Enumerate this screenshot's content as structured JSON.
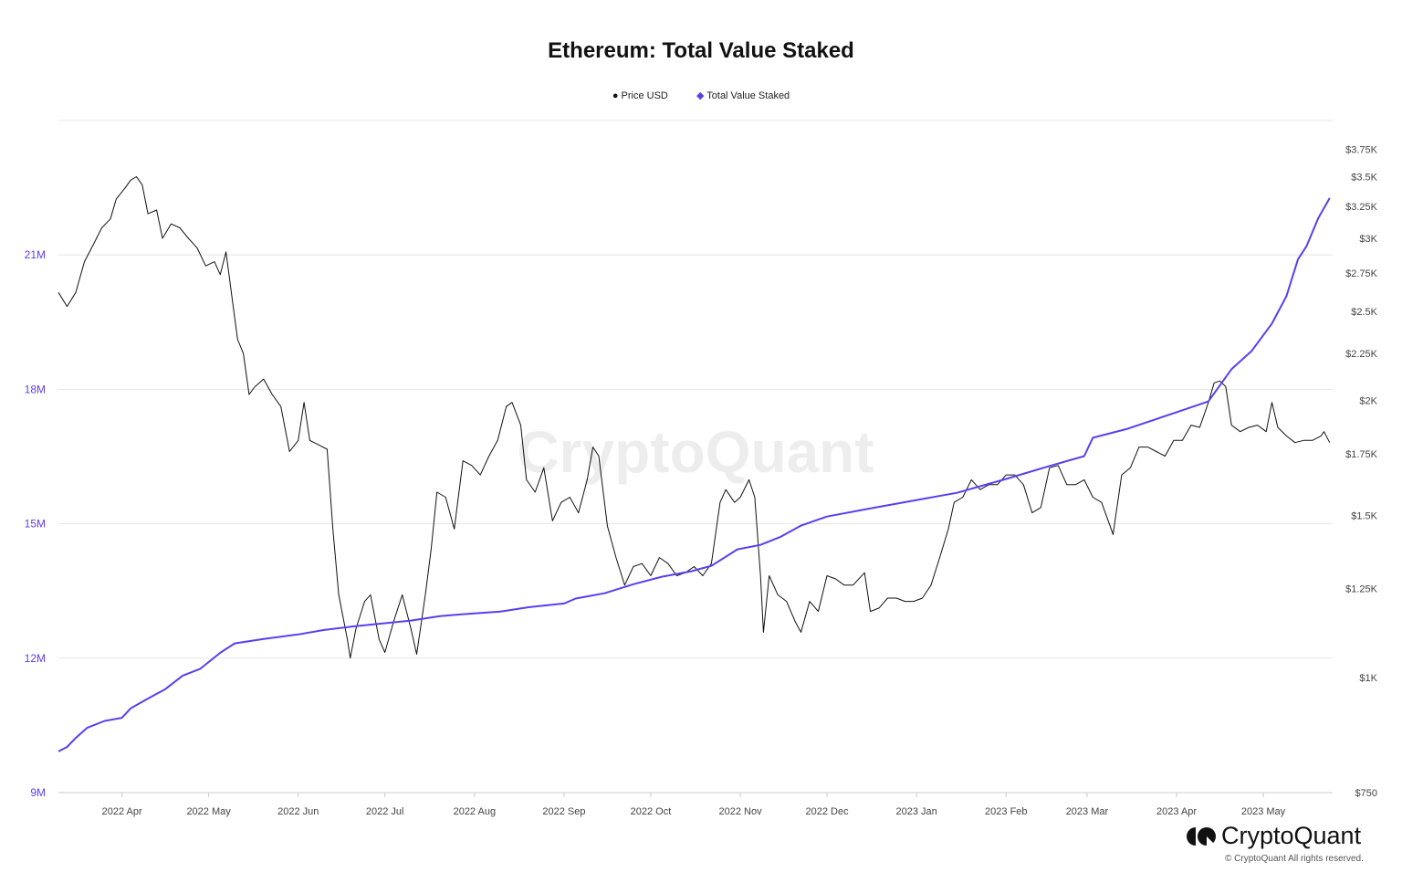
{
  "chart_data": {
    "type": "line",
    "title": "Ethereum: Total Value Staked",
    "legend_position": "top",
    "grid": true,
    "watermark": "CryptoQuant",
    "x_range": [
      "2022-03-10",
      "2023-05-25"
    ],
    "x_ticks": [
      {
        "date": "2022-04-01",
        "label": "2022 Apr"
      },
      {
        "date": "2022-05-01",
        "label": "2022 May"
      },
      {
        "date": "2022-06-01",
        "label": "2022 Jun"
      },
      {
        "date": "2022-07-01",
        "label": "2022 Jul"
      },
      {
        "date": "2022-08-01",
        "label": "2022 Aug"
      },
      {
        "date": "2022-09-01",
        "label": "2022 Sep"
      },
      {
        "date": "2022-10-01",
        "label": "2022 Oct"
      },
      {
        "date": "2022-11-01",
        "label": "2022 Nov"
      },
      {
        "date": "2022-12-01",
        "label": "2022 Dec"
      },
      {
        "date": "2023-01-01",
        "label": "2023 Jan"
      },
      {
        "date": "2023-02-01",
        "label": "2023 Feb"
      },
      {
        "date": "2023-03-01",
        "label": "2023 Mar"
      },
      {
        "date": "2023-04-01",
        "label": "2023 Apr"
      },
      {
        "date": "2023-05-01",
        "label": "2023 May"
      }
    ],
    "y_left": {
      "scale": "linear",
      "range": [
        9,
        24
      ],
      "ticks": [
        {
          "v": 9,
          "label": "9M"
        },
        {
          "v": 12,
          "label": "12M"
        },
        {
          "v": 15,
          "label": "15M"
        },
        {
          "v": 18,
          "label": "18M"
        },
        {
          "v": 21,
          "label": "21M"
        }
      ],
      "unit": "M"
    },
    "y_right": {
      "scale": "log",
      "range": [
        750,
        4028
      ],
      "ticks": [
        {
          "v": 750,
          "label": "$750"
        },
        {
          "v": 1000,
          "label": "$1K"
        },
        {
          "v": 1250,
          "label": "$1.25K"
        },
        {
          "v": 1500,
          "label": "$1.5K"
        },
        {
          "v": 1750,
          "label": "$1.75K"
        },
        {
          "v": 2000,
          "label": "$2K"
        },
        {
          "v": 2250,
          "label": "$2.25K"
        },
        {
          "v": 2500,
          "label": "$2.5K"
        },
        {
          "v": 2750,
          "label": "$2.75K"
        },
        {
          "v": 3000,
          "label": "$3K"
        },
        {
          "v": 3250,
          "label": "$3.25K"
        },
        {
          "v": 3500,
          "label": "$3.5K"
        },
        {
          "v": 3750,
          "label": "$3.75K"
        }
      ]
    },
    "series": [
      {
        "name": "Price USD",
        "axis": "right",
        "color": "#111111",
        "points": [
          [
            "2022-03-10",
            2620
          ],
          [
            "2022-03-13",
            2530
          ],
          [
            "2022-03-16",
            2620
          ],
          [
            "2022-03-19",
            2830
          ],
          [
            "2022-03-22",
            2950
          ],
          [
            "2022-03-25",
            3080
          ],
          [
            "2022-03-28",
            3150
          ],
          [
            "2022-03-30",
            3310
          ],
          [
            "2022-04-02",
            3400
          ],
          [
            "2022-04-04",
            3470
          ],
          [
            "2022-04-06",
            3500
          ],
          [
            "2022-04-08",
            3430
          ],
          [
            "2022-04-10",
            3190
          ],
          [
            "2022-04-13",
            3220
          ],
          [
            "2022-04-15",
            3000
          ],
          [
            "2022-04-18",
            3110
          ],
          [
            "2022-04-21",
            3080
          ],
          [
            "2022-04-24",
            3000
          ],
          [
            "2022-04-27",
            2930
          ],
          [
            "2022-04-30",
            2800
          ],
          [
            "2022-05-03",
            2830
          ],
          [
            "2022-05-05",
            2740
          ],
          [
            "2022-05-07",
            2900
          ],
          [
            "2022-05-09",
            2600
          ],
          [
            "2022-05-11",
            2330
          ],
          [
            "2022-05-13",
            2250
          ],
          [
            "2022-05-15",
            2030
          ],
          [
            "2022-05-17",
            2070
          ],
          [
            "2022-05-20",
            2110
          ],
          [
            "2022-05-23",
            2030
          ],
          [
            "2022-05-26",
            1970
          ],
          [
            "2022-05-29",
            1760
          ],
          [
            "2022-06-01",
            1810
          ],
          [
            "2022-06-03",
            1990
          ],
          [
            "2022-06-05",
            1810
          ],
          [
            "2022-06-08",
            1790
          ],
          [
            "2022-06-11",
            1770
          ],
          [
            "2022-06-13",
            1450
          ],
          [
            "2022-06-15",
            1230
          ],
          [
            "2022-06-18",
            1100
          ],
          [
            "2022-06-19",
            1050
          ],
          [
            "2022-06-21",
            1130
          ],
          [
            "2022-06-24",
            1210
          ],
          [
            "2022-06-26",
            1230
          ],
          [
            "2022-06-29",
            1100
          ],
          [
            "2022-07-01",
            1065
          ],
          [
            "2022-07-04",
            1150
          ],
          [
            "2022-07-07",
            1230
          ],
          [
            "2022-07-10",
            1130
          ],
          [
            "2022-07-12",
            1060
          ],
          [
            "2022-07-15",
            1230
          ],
          [
            "2022-07-17",
            1380
          ],
          [
            "2022-07-19",
            1590
          ],
          [
            "2022-07-22",
            1570
          ],
          [
            "2022-07-25",
            1450
          ],
          [
            "2022-07-28",
            1720
          ],
          [
            "2022-07-31",
            1700
          ],
          [
            "2022-08-03",
            1660
          ],
          [
            "2022-08-06",
            1740
          ],
          [
            "2022-08-09",
            1810
          ],
          [
            "2022-08-12",
            1970
          ],
          [
            "2022-08-14",
            1990
          ],
          [
            "2022-08-17",
            1880
          ],
          [
            "2022-08-19",
            1640
          ],
          [
            "2022-08-22",
            1590
          ],
          [
            "2022-08-25",
            1690
          ],
          [
            "2022-08-28",
            1480
          ],
          [
            "2022-08-31",
            1550
          ],
          [
            "2022-09-03",
            1570
          ],
          [
            "2022-09-06",
            1510
          ],
          [
            "2022-09-09",
            1640
          ],
          [
            "2022-09-11",
            1780
          ],
          [
            "2022-09-13",
            1740
          ],
          [
            "2022-09-16",
            1460
          ],
          [
            "2022-09-19",
            1350
          ],
          [
            "2022-09-22",
            1260
          ],
          [
            "2022-09-25",
            1320
          ],
          [
            "2022-09-28",
            1330
          ],
          [
            "2022-10-01",
            1290
          ],
          [
            "2022-10-04",
            1350
          ],
          [
            "2022-10-07",
            1330
          ],
          [
            "2022-10-10",
            1290
          ],
          [
            "2022-10-13",
            1300
          ],
          [
            "2022-10-16",
            1320
          ],
          [
            "2022-10-19",
            1290
          ],
          [
            "2022-10-22",
            1330
          ],
          [
            "2022-10-25",
            1550
          ],
          [
            "2022-10-27",
            1600
          ],
          [
            "2022-10-30",
            1550
          ],
          [
            "2022-11-01",
            1570
          ],
          [
            "2022-11-04",
            1640
          ],
          [
            "2022-11-06",
            1570
          ],
          [
            "2022-11-08",
            1290
          ],
          [
            "2022-11-09",
            1120
          ],
          [
            "2022-11-11",
            1290
          ],
          [
            "2022-11-14",
            1230
          ],
          [
            "2022-11-17",
            1210
          ],
          [
            "2022-11-20",
            1150
          ],
          [
            "2022-11-22",
            1120
          ],
          [
            "2022-11-25",
            1210
          ],
          [
            "2022-11-28",
            1180
          ],
          [
            "2022-12-01",
            1290
          ],
          [
            "2022-12-04",
            1280
          ],
          [
            "2022-12-07",
            1260
          ],
          [
            "2022-12-10",
            1260
          ],
          [
            "2022-12-14",
            1300
          ],
          [
            "2022-12-16",
            1180
          ],
          [
            "2022-12-19",
            1190
          ],
          [
            "2022-12-22",
            1220
          ],
          [
            "2022-12-25",
            1220
          ],
          [
            "2022-12-28",
            1210
          ],
          [
            "2022-12-31",
            1210
          ],
          [
            "2023-01-03",
            1220
          ],
          [
            "2023-01-06",
            1260
          ],
          [
            "2023-01-09",
            1350
          ],
          [
            "2023-01-12",
            1450
          ],
          [
            "2023-01-14",
            1550
          ],
          [
            "2023-01-17",
            1570
          ],
          [
            "2023-01-20",
            1640
          ],
          [
            "2023-01-23",
            1600
          ],
          [
            "2023-01-26",
            1620
          ],
          [
            "2023-01-29",
            1620
          ],
          [
            "2023-02-01",
            1660
          ],
          [
            "2023-02-04",
            1660
          ],
          [
            "2023-02-07",
            1620
          ],
          [
            "2023-02-10",
            1510
          ],
          [
            "2023-02-13",
            1530
          ],
          [
            "2023-02-16",
            1690
          ],
          [
            "2023-02-19",
            1700
          ],
          [
            "2023-02-22",
            1620
          ],
          [
            "2023-02-25",
            1620
          ],
          [
            "2023-02-28",
            1640
          ],
          [
            "2023-03-03",
            1570
          ],
          [
            "2023-03-06",
            1550
          ],
          [
            "2023-03-09",
            1460
          ],
          [
            "2023-03-10",
            1430
          ],
          [
            "2023-03-13",
            1660
          ],
          [
            "2023-03-16",
            1690
          ],
          [
            "2023-03-19",
            1780
          ],
          [
            "2023-03-22",
            1780
          ],
          [
            "2023-03-25",
            1760
          ],
          [
            "2023-03-28",
            1740
          ],
          [
            "2023-03-31",
            1810
          ],
          [
            "2023-04-03",
            1810
          ],
          [
            "2023-04-06",
            1880
          ],
          [
            "2023-04-09",
            1870
          ],
          [
            "2023-04-12",
            1990
          ],
          [
            "2023-04-14",
            2090
          ],
          [
            "2023-04-16",
            2100
          ],
          [
            "2023-04-18",
            2070
          ],
          [
            "2023-04-20",
            1880
          ],
          [
            "2023-04-23",
            1850
          ],
          [
            "2023-04-26",
            1870
          ],
          [
            "2023-04-29",
            1880
          ],
          [
            "2023-05-02",
            1850
          ],
          [
            "2023-05-04",
            1990
          ],
          [
            "2023-05-06",
            1870
          ],
          [
            "2023-05-09",
            1830
          ],
          [
            "2023-05-12",
            1800
          ],
          [
            "2023-05-15",
            1810
          ],
          [
            "2023-05-18",
            1810
          ],
          [
            "2023-05-21",
            1830
          ],
          [
            "2023-05-22",
            1850
          ],
          [
            "2023-05-24",
            1800
          ]
        ]
      },
      {
        "name": "Total Value Staked",
        "axis": "left",
        "color": "#5b3ef0",
        "points": [
          [
            "2022-03-10",
            9.92
          ],
          [
            "2022-03-13",
            10.02
          ],
          [
            "2022-03-16",
            10.22
          ],
          [
            "2022-03-20",
            10.45
          ],
          [
            "2022-03-26",
            10.6
          ],
          [
            "2022-04-01",
            10.67
          ],
          [
            "2022-04-04",
            10.88
          ],
          [
            "2022-04-10",
            11.1
          ],
          [
            "2022-04-16",
            11.31
          ],
          [
            "2022-04-22",
            11.61
          ],
          [
            "2022-04-28",
            11.76
          ],
          [
            "2022-05-05",
            12.12
          ],
          [
            "2022-05-10",
            12.33
          ],
          [
            "2022-05-20",
            12.43
          ],
          [
            "2022-06-01",
            12.53
          ],
          [
            "2022-06-10",
            12.63
          ],
          [
            "2022-06-20",
            12.71
          ],
          [
            "2022-07-01",
            12.78
          ],
          [
            "2022-07-10",
            12.84
          ],
          [
            "2022-07-20",
            12.94
          ],
          [
            "2022-08-01",
            13.0
          ],
          [
            "2022-08-10",
            13.04
          ],
          [
            "2022-08-20",
            13.14
          ],
          [
            "2022-09-01",
            13.22
          ],
          [
            "2022-09-05",
            13.33
          ],
          [
            "2022-09-15",
            13.45
          ],
          [
            "2022-09-25",
            13.65
          ],
          [
            "2022-10-05",
            13.82
          ],
          [
            "2022-10-15",
            13.94
          ],
          [
            "2022-10-22",
            14.06
          ],
          [
            "2022-10-31",
            14.43
          ],
          [
            "2022-11-08",
            14.53
          ],
          [
            "2022-11-15",
            14.71
          ],
          [
            "2022-11-22",
            14.96
          ],
          [
            "2022-12-01",
            15.16
          ],
          [
            "2022-12-15",
            15.33
          ],
          [
            "2023-01-01",
            15.53
          ],
          [
            "2023-01-15",
            15.69
          ],
          [
            "2023-02-01",
            16.0
          ],
          [
            "2023-02-15",
            16.27
          ],
          [
            "2023-02-28",
            16.51
          ],
          [
            "2023-03-03",
            16.92
          ],
          [
            "2023-03-15",
            17.12
          ],
          [
            "2023-04-01",
            17.49
          ],
          [
            "2023-04-12",
            17.73
          ],
          [
            "2023-04-20",
            18.45
          ],
          [
            "2023-04-27",
            18.86
          ],
          [
            "2023-05-04",
            19.47
          ],
          [
            "2023-05-09",
            20.08
          ],
          [
            "2023-05-13",
            20.9
          ],
          [
            "2023-05-16",
            21.2
          ],
          [
            "2023-05-20",
            21.82
          ],
          [
            "2023-05-24",
            22.27
          ]
        ]
      }
    ]
  },
  "footer": {
    "brand": "CryptoQuant",
    "copyright": "© CryptoQuant All rights reserved."
  }
}
